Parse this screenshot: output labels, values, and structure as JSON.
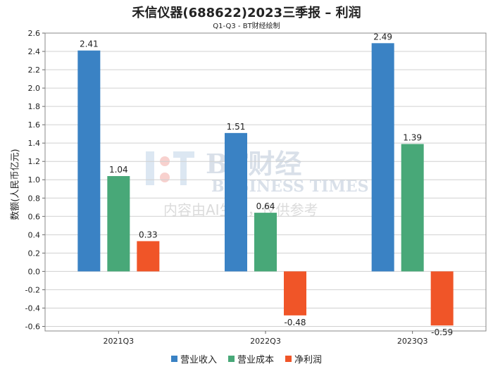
{
  "title": "禾信仪器(688622)2023三季报 – 利润",
  "subtitle": "Q1-Q3 - BT财经绘制",
  "watermark": {
    "brand": "BT财经",
    "english": "BUSINESS TIMES",
    "note": "内容由AI生成，仅供参考"
  },
  "chart_data": {
    "type": "bar",
    "categories": [
      "2021Q3",
      "2022Q3",
      "2023Q3"
    ],
    "ylabel": "数额(人民币亿元)",
    "ylim": [
      -0.65,
      2.6
    ],
    "yticks": [
      2.6,
      2.4,
      2.2,
      2.0,
      1.8,
      1.6,
      1.4,
      1.2,
      1.0,
      0.8,
      0.6,
      0.4,
      0.2,
      0.0,
      -0.2,
      -0.4,
      -0.6
    ],
    "grid": true,
    "legend_position": "bottom",
    "series": [
      {
        "name": "营业收入",
        "color": "#3a82c4",
        "values": [
          2.41,
          1.51,
          2.49
        ]
      },
      {
        "name": "营业成本",
        "color": "#48a878",
        "values": [
          1.04,
          0.64,
          1.39
        ]
      },
      {
        "name": "净利润",
        "color": "#f05528",
        "values": [
          0.33,
          -0.48,
          -0.59
        ]
      }
    ]
  }
}
